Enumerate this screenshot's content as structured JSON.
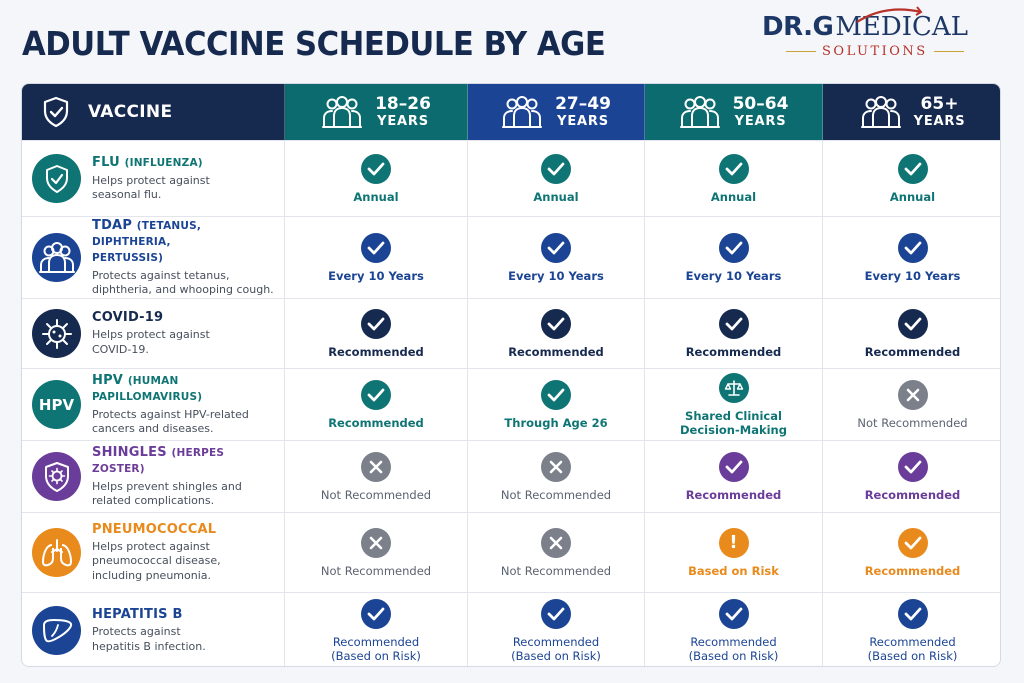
{
  "title": "ADULT VACCINE SCHEDULE BY AGE",
  "logo": {
    "main": "DR.G",
    "medical": "MEDICAL",
    "sub": "SOLUTIONS"
  },
  "header": {
    "vaccine_label": "VACCINE",
    "ages": [
      {
        "range": "18–26",
        "unit": "YEARS",
        "color": "#0c6b6e"
      },
      {
        "range": "27–49",
        "unit": "YEARS",
        "color": "#1b4494"
      },
      {
        "range": "50–64",
        "unit": "YEARS",
        "color": "#0c6b6e"
      },
      {
        "range": "65+",
        "unit": "YEARS",
        "color": "#16294f"
      }
    ]
  },
  "vaccines": [
    {
      "name": "FLU",
      "paren": "(INFLUENZA)",
      "desc": [
        "Helps protect against",
        "seasonal flu."
      ],
      "icon": "shield-icon",
      "color": "#0f7574",
      "cells": [
        {
          "status": "check",
          "label": "Annual"
        },
        {
          "status": "check",
          "label": "Annual"
        },
        {
          "status": "check",
          "label": "Annual"
        },
        {
          "status": "check",
          "label": "Annual"
        }
      ]
    },
    {
      "name": "TDAP",
      "paren": "(TETANUS, DIPHTHERIA,",
      "paren2": "PERTUSSIS)",
      "desc": [
        "Protects against tetanus,",
        "diphtheria, and whooping cough."
      ],
      "icon": "people-icon",
      "color": "#1b4494",
      "cells": [
        {
          "status": "check",
          "label": "Every 10 Years"
        },
        {
          "status": "check",
          "label": "Every 10 Years"
        },
        {
          "status": "check",
          "label": "Every 10 Years"
        },
        {
          "status": "check",
          "label": "Every 10 Years"
        }
      ]
    },
    {
      "name": "COVID-19",
      "paren": "",
      "desc": [
        "Helps protect against",
        "COVID-19."
      ],
      "icon": "virus-icon",
      "color": "#16294f",
      "cells": [
        {
          "status": "check",
          "label": "Recommended"
        },
        {
          "status": "check",
          "label": "Recommended"
        },
        {
          "status": "check",
          "label": "Recommended"
        },
        {
          "status": "check",
          "label": "Recommended"
        }
      ]
    },
    {
      "name": "HPV",
      "paren": "(HUMAN PAPILLOMAVIRUS)",
      "desc": [
        "Protects against HPV-related",
        "cancers and diseases."
      ],
      "icon": "hpv-icon",
      "icon_text": "HPV",
      "color": "#0f7574",
      "cells": [
        {
          "status": "check",
          "label": "Recommended"
        },
        {
          "status": "check",
          "label": "Through Age 26"
        },
        {
          "status": "scale",
          "label": "Shared Clinical",
          "label2": "Decision-Making"
        },
        {
          "status": "x",
          "label": "Not Recommended"
        }
      ]
    },
    {
      "name": "SHINGLES",
      "paren": "(HERPES ZOSTER)",
      "desc": [
        "Helps prevent shingles and",
        "related complications."
      ],
      "icon": "shield-virus-icon",
      "color": "#6b3d9a",
      "cells": [
        {
          "status": "x",
          "label": "Not Recommended"
        },
        {
          "status": "x",
          "label": "Not Recommended"
        },
        {
          "status": "check",
          "label": "Recommended"
        },
        {
          "status": "check",
          "label": "Recommended"
        }
      ]
    },
    {
      "name": "PNEUMOCOCCAL",
      "paren": "",
      "desc": [
        "Helps protect against",
        "pneumococcal disease,",
        "including pneumonia."
      ],
      "icon": "lungs-icon",
      "color": "#e98a1c",
      "cells": [
        {
          "status": "x",
          "label": "Not Recommended"
        },
        {
          "status": "x",
          "label": "Not Recommended"
        },
        {
          "status": "alert",
          "label": "Based on Risk"
        },
        {
          "status": "check",
          "label": "Recommended"
        }
      ]
    },
    {
      "name": "HEPATITIS B",
      "paren": "",
      "desc": [
        "Protects against",
        "hepatitis B infection."
      ],
      "icon": "liver-icon",
      "color": "#1b4494",
      "cells": [
        {
          "status": "check",
          "label": "Recommended",
          "label2": "(Based on Risk)"
        },
        {
          "status": "check",
          "label": "Recommended",
          "label2": "(Based on Risk)"
        },
        {
          "status": "check",
          "label": "Recommended",
          "label2": "(Based on Risk)"
        },
        {
          "status": "check",
          "label": "Recommended",
          "label2": "(Based on Risk)"
        }
      ]
    }
  ]
}
